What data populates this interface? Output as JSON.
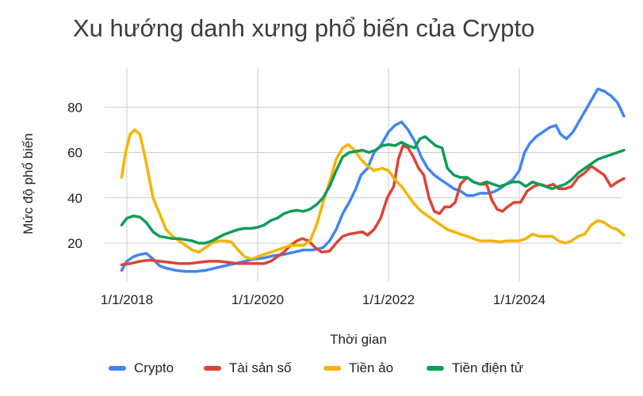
{
  "chart_data": {
    "type": "line",
    "title": "Xu hướng danh xưng phổ biến của Crypto",
    "xlabel": "Thời gian",
    "ylabel": "Mức độ phổ biến",
    "x_ticks": [
      "1/1/2018",
      "1/1/2020",
      "1/1/2022",
      "1/1/2024"
    ],
    "y_ticks": [
      20,
      40,
      60,
      80
    ],
    "ylim": [
      2,
      92
    ],
    "xlim": [
      2017.92,
      2025.75
    ],
    "grid": true,
    "legend_position": "bottom",
    "series": [
      {
        "name": "Crypto",
        "color": "#4285f4",
        "points": [
          [
            2017.92,
            8
          ],
          [
            2018.0,
            12
          ],
          [
            2018.1,
            14
          ],
          [
            2018.2,
            15
          ],
          [
            2018.3,
            15.5
          ],
          [
            2018.4,
            13
          ],
          [
            2018.5,
            10
          ],
          [
            2018.6,
            9
          ],
          [
            2018.75,
            8
          ],
          [
            2018.9,
            7.5
          ],
          [
            2019.05,
            7.5
          ],
          [
            2019.2,
            8
          ],
          [
            2019.35,
            9
          ],
          [
            2019.5,
            10
          ],
          [
            2019.65,
            11
          ],
          [
            2019.8,
            12
          ],
          [
            2019.95,
            13
          ],
          [
            2020.1,
            13.5
          ],
          [
            2020.25,
            14.5
          ],
          [
            2020.4,
            15
          ],
          [
            2020.55,
            16
          ],
          [
            2020.7,
            17
          ],
          [
            2020.85,
            17
          ],
          [
            2021.0,
            18
          ],
          [
            2021.1,
            21
          ],
          [
            2021.2,
            26
          ],
          [
            2021.3,
            33
          ],
          [
            2021.4,
            38
          ],
          [
            2021.5,
            44
          ],
          [
            2021.58,
            50
          ],
          [
            2021.68,
            53
          ],
          [
            2021.78,
            60
          ],
          [
            2021.88,
            63
          ],
          [
            2022.0,
            69
          ],
          [
            2022.1,
            72
          ],
          [
            2022.2,
            73.5
          ],
          [
            2022.3,
            70
          ],
          [
            2022.4,
            65
          ],
          [
            2022.5,
            58
          ],
          [
            2022.6,
            53
          ],
          [
            2022.7,
            50
          ],
          [
            2022.8,
            48
          ],
          [
            2022.9,
            46
          ],
          [
            2023.0,
            44
          ],
          [
            2023.1,
            43
          ],
          [
            2023.2,
            41
          ],
          [
            2023.3,
            41
          ],
          [
            2023.4,
            42
          ],
          [
            2023.5,
            42
          ],
          [
            2023.6,
            42.5
          ],
          [
            2023.7,
            44
          ],
          [
            2023.8,
            46
          ],
          [
            2023.9,
            48
          ],
          [
            2024.0,
            52
          ],
          [
            2024.08,
            60
          ],
          [
            2024.16,
            64
          ],
          [
            2024.26,
            67
          ],
          [
            2024.36,
            69
          ],
          [
            2024.46,
            71
          ],
          [
            2024.56,
            72
          ],
          [
            2024.63,
            68
          ],
          [
            2024.72,
            66
          ],
          [
            2024.82,
            69
          ],
          [
            2024.92,
            74
          ],
          [
            2025.02,
            79
          ],
          [
            2025.12,
            84
          ],
          [
            2025.2,
            88
          ],
          [
            2025.3,
            87
          ],
          [
            2025.4,
            85
          ],
          [
            2025.5,
            82
          ],
          [
            2025.6,
            76
          ]
        ]
      },
      {
        "name": "Tài sản số",
        "color": "#db4437",
        "points": [
          [
            2017.92,
            10.5
          ],
          [
            2018.05,
            11
          ],
          [
            2018.2,
            12
          ],
          [
            2018.35,
            12.5
          ],
          [
            2018.5,
            12
          ],
          [
            2018.65,
            11.5
          ],
          [
            2018.8,
            11
          ],
          [
            2018.95,
            11
          ],
          [
            2019.1,
            11.5
          ],
          [
            2019.25,
            12
          ],
          [
            2019.4,
            12
          ],
          [
            2019.55,
            11.5
          ],
          [
            2019.7,
            11
          ],
          [
            2019.85,
            11
          ],
          [
            2020.0,
            11
          ],
          [
            2020.1,
            11
          ],
          [
            2020.2,
            12
          ],
          [
            2020.3,
            14
          ],
          [
            2020.4,
            16
          ],
          [
            2020.5,
            19
          ],
          [
            2020.6,
            21
          ],
          [
            2020.68,
            22
          ],
          [
            2020.78,
            21
          ],
          [
            2020.88,
            18
          ],
          [
            2020.98,
            16
          ],
          [
            2021.1,
            16.5
          ],
          [
            2021.2,
            20
          ],
          [
            2021.3,
            23
          ],
          [
            2021.4,
            24
          ],
          [
            2021.5,
            24.5
          ],
          [
            2021.6,
            25
          ],
          [
            2021.68,
            23.5
          ],
          [
            2021.78,
            26
          ],
          [
            2021.88,
            31
          ],
          [
            2021.98,
            40
          ],
          [
            2022.08,
            45
          ],
          [
            2022.15,
            57
          ],
          [
            2022.22,
            63
          ],
          [
            2022.3,
            62
          ],
          [
            2022.38,
            58
          ],
          [
            2022.46,
            53
          ],
          [
            2022.54,
            50
          ],
          [
            2022.62,
            40
          ],
          [
            2022.7,
            34
          ],
          [
            2022.78,
            33
          ],
          [
            2022.86,
            36
          ],
          [
            2022.94,
            36
          ],
          [
            2023.02,
            38
          ],
          [
            2023.1,
            46
          ],
          [
            2023.2,
            49
          ],
          [
            2023.3,
            47
          ],
          [
            2023.4,
            46
          ],
          [
            2023.5,
            46
          ],
          [
            2023.58,
            39
          ],
          [
            2023.66,
            35
          ],
          [
            2023.74,
            34
          ],
          [
            2023.82,
            36
          ],
          [
            2023.92,
            38
          ],
          [
            2024.02,
            38
          ],
          [
            2024.12,
            43
          ],
          [
            2024.22,
            45
          ],
          [
            2024.32,
            46
          ],
          [
            2024.42,
            45
          ],
          [
            2024.52,
            46
          ],
          [
            2024.6,
            44
          ],
          [
            2024.7,
            44
          ],
          [
            2024.8,
            45
          ],
          [
            2024.9,
            49
          ],
          [
            2025.0,
            51
          ],
          [
            2025.1,
            54
          ],
          [
            2025.2,
            52
          ],
          [
            2025.3,
            50
          ],
          [
            2025.4,
            45
          ],
          [
            2025.5,
            47
          ],
          [
            2025.6,
            48.5
          ]
        ]
      },
      {
        "name": "Tiền ảo",
        "color": "#f4b400",
        "points": [
          [
            2017.92,
            49
          ],
          [
            2017.98,
            60
          ],
          [
            2018.05,
            68
          ],
          [
            2018.12,
            70
          ],
          [
            2018.2,
            68
          ],
          [
            2018.3,
            55
          ],
          [
            2018.4,
            40
          ],
          [
            2018.5,
            33
          ],
          [
            2018.6,
            26
          ],
          [
            2018.7,
            23
          ],
          [
            2018.8,
            21
          ],
          [
            2018.9,
            19
          ],
          [
            2019.0,
            17
          ],
          [
            2019.1,
            16
          ],
          [
            2019.2,
            18
          ],
          [
            2019.3,
            20
          ],
          [
            2019.4,
            21
          ],
          [
            2019.5,
            21
          ],
          [
            2019.6,
            20.5
          ],
          [
            2019.7,
            17
          ],
          [
            2019.8,
            14
          ],
          [
            2019.9,
            13
          ],
          [
            2020.0,
            14
          ],
          [
            2020.1,
            15
          ],
          [
            2020.2,
            16
          ],
          [
            2020.3,
            17
          ],
          [
            2020.4,
            18
          ],
          [
            2020.5,
            19
          ],
          [
            2020.6,
            19
          ],
          [
            2020.7,
            19
          ],
          [
            2020.8,
            21
          ],
          [
            2020.9,
            28
          ],
          [
            2021.0,
            38
          ],
          [
            2021.1,
            47
          ],
          [
            2021.2,
            57
          ],
          [
            2021.3,
            62
          ],
          [
            2021.38,
            63.5
          ],
          [
            2021.48,
            61
          ],
          [
            2021.58,
            57
          ],
          [
            2021.68,
            54
          ],
          [
            2021.78,
            52
          ],
          [
            2021.9,
            53
          ],
          [
            2022.0,
            52
          ],
          [
            2022.1,
            48
          ],
          [
            2022.2,
            45
          ],
          [
            2022.3,
            41
          ],
          [
            2022.4,
            37
          ],
          [
            2022.5,
            34
          ],
          [
            2022.6,
            32
          ],
          [
            2022.7,
            30
          ],
          [
            2022.8,
            28
          ],
          [
            2022.9,
            26
          ],
          [
            2023.0,
            25
          ],
          [
            2023.1,
            24
          ],
          [
            2023.2,
            23
          ],
          [
            2023.3,
            22
          ],
          [
            2023.4,
            21
          ],
          [
            2023.5,
            21
          ],
          [
            2023.6,
            21
          ],
          [
            2023.7,
            20.5
          ],
          [
            2023.8,
            21
          ],
          [
            2023.9,
            21
          ],
          [
            2024.0,
            21
          ],
          [
            2024.1,
            22
          ],
          [
            2024.2,
            24
          ],
          [
            2024.3,
            23
          ],
          [
            2024.4,
            23
          ],
          [
            2024.5,
            23
          ],
          [
            2024.6,
            21
          ],
          [
            2024.7,
            20
          ],
          [
            2024.8,
            21
          ],
          [
            2024.9,
            23
          ],
          [
            2025.0,
            24
          ],
          [
            2025.1,
            28
          ],
          [
            2025.2,
            30
          ],
          [
            2025.3,
            29
          ],
          [
            2025.4,
            27
          ],
          [
            2025.5,
            26
          ],
          [
            2025.6,
            23.5
          ]
        ]
      },
      {
        "name": "Tiền điện tử",
        "color": "#0f9d58",
        "points": [
          [
            2017.92,
            28
          ],
          [
            2018.0,
            31
          ],
          [
            2018.1,
            32
          ],
          [
            2018.2,
            31.5
          ],
          [
            2018.3,
            29
          ],
          [
            2018.4,
            25
          ],
          [
            2018.5,
            23
          ],
          [
            2018.6,
            22.5
          ],
          [
            2018.7,
            22
          ],
          [
            2018.8,
            22
          ],
          [
            2018.9,
            21.5
          ],
          [
            2019.0,
            21
          ],
          [
            2019.1,
            20
          ],
          [
            2019.2,
            20
          ],
          [
            2019.3,
            21
          ],
          [
            2019.4,
            22.5
          ],
          [
            2019.5,
            24
          ],
          [
            2019.6,
            25
          ],
          [
            2019.7,
            26
          ],
          [
            2019.8,
            26.5
          ],
          [
            2019.9,
            26.5
          ],
          [
            2020.0,
            27
          ],
          [
            2020.1,
            28
          ],
          [
            2020.2,
            30
          ],
          [
            2020.3,
            31
          ],
          [
            2020.4,
            33
          ],
          [
            2020.5,
            34
          ],
          [
            2020.6,
            34.5
          ],
          [
            2020.7,
            34
          ],
          [
            2020.8,
            35
          ],
          [
            2020.9,
            37
          ],
          [
            2021.0,
            40
          ],
          [
            2021.1,
            45
          ],
          [
            2021.2,
            52
          ],
          [
            2021.3,
            58
          ],
          [
            2021.4,
            60
          ],
          [
            2021.5,
            60.5
          ],
          [
            2021.6,
            61
          ],
          [
            2021.7,
            60
          ],
          [
            2021.8,
            61
          ],
          [
            2021.9,
            63
          ],
          [
            2022.0,
            63.5
          ],
          [
            2022.1,
            63
          ],
          [
            2022.2,
            64.5
          ],
          [
            2022.3,
            63
          ],
          [
            2022.4,
            62
          ],
          [
            2022.48,
            66
          ],
          [
            2022.56,
            67
          ],
          [
            2022.64,
            65
          ],
          [
            2022.72,
            63
          ],
          [
            2022.82,
            62
          ],
          [
            2022.9,
            53
          ],
          [
            2023.0,
            50
          ],
          [
            2023.1,
            49
          ],
          [
            2023.2,
            49
          ],
          [
            2023.3,
            47
          ],
          [
            2023.4,
            46
          ],
          [
            2023.5,
            47
          ],
          [
            2023.6,
            46
          ],
          [
            2023.7,
            45
          ],
          [
            2023.8,
            46
          ],
          [
            2023.9,
            47
          ],
          [
            2024.0,
            47
          ],
          [
            2024.1,
            45
          ],
          [
            2024.2,
            47
          ],
          [
            2024.3,
            46
          ],
          [
            2024.4,
            45
          ],
          [
            2024.5,
            44
          ],
          [
            2024.6,
            45
          ],
          [
            2024.7,
            46
          ],
          [
            2024.8,
            48
          ],
          [
            2024.9,
            51
          ],
          [
            2025.0,
            53
          ],
          [
            2025.1,
            55
          ],
          [
            2025.2,
            57
          ],
          [
            2025.3,
            58
          ],
          [
            2025.4,
            59
          ],
          [
            2025.5,
            60
          ],
          [
            2025.6,
            61
          ]
        ]
      }
    ]
  }
}
